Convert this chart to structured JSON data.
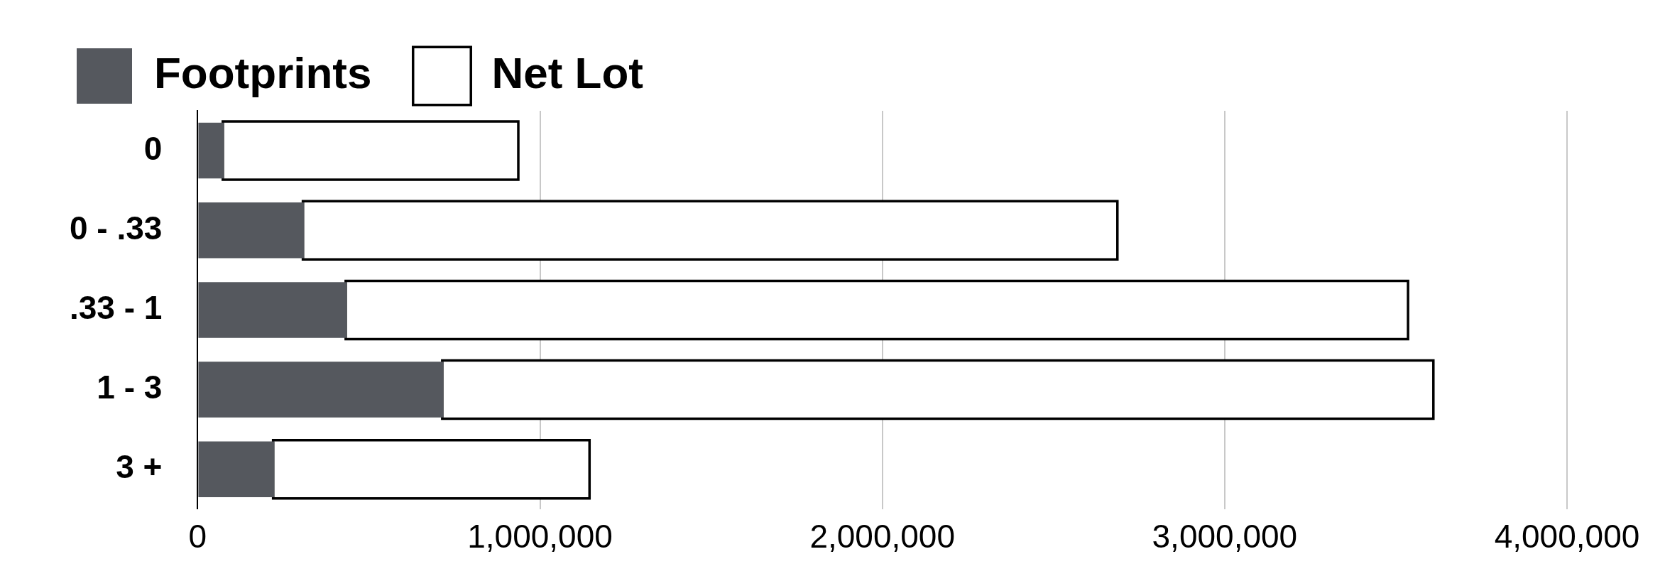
{
  "chart_data": {
    "type": "bar",
    "orientation": "horizontal",
    "stacked": true,
    "categories": [
      "0",
      "0 - .33",
      ".33 - 1",
      "1 - 3",
      "3 +"
    ],
    "series": [
      {
        "name": "Footprints",
        "color": "#55585e",
        "values": [
          77000,
          311000,
          436000,
          718000,
          224000
        ]
      },
      {
        "name": "Net Lot",
        "color": "#ffffff",
        "values": [
          856000,
          2372000,
          3096000,
          2888000,
          917000
        ]
      }
    ],
    "xlim": [
      0,
      4000000
    ],
    "xticks": [
      0,
      {
        "value": 1000000,
        "label": "1,000,000"
      },
      {
        "value": 2000000,
        "label": "2,000,000"
      },
      {
        "value": 3000000,
        "label": "3,000,000"
      },
      {
        "value": 4000000,
        "label": "4,000,000"
      }
    ],
    "grid": "x",
    "legend": "top left"
  }
}
